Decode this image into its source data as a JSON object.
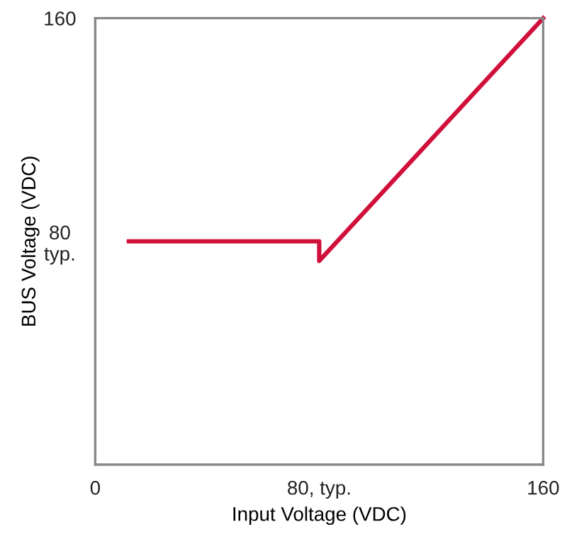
{
  "chart_data": {
    "type": "line",
    "xlabel": "Input Voltage (VDC)",
    "ylabel": "BUS Voltage (VDC)",
    "x": [
      12,
      80,
      80,
      160
    ],
    "series": [
      {
        "color": "#d0103a",
        "values": [
          80,
          80,
          73,
          160
        ]
      }
    ],
    "xlim": [
      0,
      160
    ],
    "ylim": [
      0,
      160
    ],
    "xticks": [
      0,
      {
        "value": 80,
        "label": "80, typ."
      },
      160
    ],
    "yticks": [
      {
        "value": 80,
        "label": "80\ntyp."
      },
      160
    ],
    "grid": false,
    "legend": false,
    "marker": "none",
    "line_style": "solid"
  }
}
